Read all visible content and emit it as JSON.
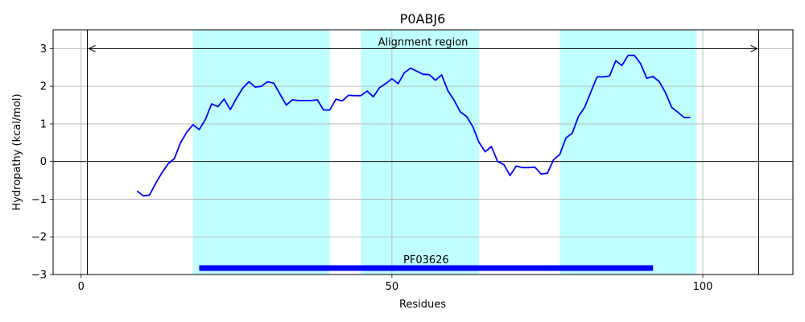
{
  "chart_data": {
    "type": "line",
    "title": "P0ABJ6",
    "xlabel": "Residues",
    "ylabel": "Hydropathy (kcal/mol)",
    "xlim": [
      -4.5,
      114.5
    ],
    "ylim": [
      -3,
      3.5
    ],
    "xticks": [
      0,
      50,
      100
    ],
    "yticks": [
      -3,
      -2,
      -1,
      0,
      1,
      2,
      3
    ],
    "grid": true,
    "line_color": "#0000ff",
    "band_color": "#c0ffff",
    "domain_color": "#0000ff",
    "bands": [
      [
        18,
        40
      ],
      [
        45,
        64
      ],
      [
        77,
        99
      ]
    ],
    "alignment": {
      "label": "Alignment region",
      "start": 1,
      "end": 109,
      "y": 3
    },
    "domain": {
      "label": "PF03626",
      "start": 19,
      "end": 92,
      "y": -2.83
    },
    "series": [
      {
        "x": [
          9,
          10,
          11,
          12,
          13,
          14,
          15,
          16,
          17,
          18,
          19,
          20,
          21,
          22,
          23,
          24,
          25,
          26,
          27,
          28,
          29,
          30,
          31,
          32,
          33,
          34,
          35,
          36,
          37,
          38,
          39,
          40,
          41,
          42,
          43,
          44,
          45,
          46,
          47,
          48,
          49,
          50,
          51,
          52,
          53,
          54,
          55,
          56,
          57,
          58,
          59,
          60,
          61,
          62,
          63,
          64,
          65,
          66,
          67,
          68,
          69,
          70,
          71,
          72,
          73,
          74,
          75,
          76,
          77,
          78,
          79,
          80,
          81,
          82,
          83,
          84,
          85,
          86,
          87,
          88,
          89,
          90,
          91,
          92,
          93,
          94,
          95,
          96,
          97,
          98
        ],
        "y": [
          -0.78,
          -0.91,
          -0.89,
          -0.58,
          -0.3,
          -0.06,
          0.08,
          0.5,
          0.78,
          0.98,
          0.85,
          1.12,
          1.53,
          1.46,
          1.66,
          1.38,
          1.68,
          1.95,
          2.12,
          1.98,
          2.0,
          2.12,
          2.08,
          1.79,
          1.5,
          1.64,
          1.62,
          1.62,
          1.62,
          1.64,
          1.37,
          1.37,
          1.66,
          1.61,
          1.76,
          1.75,
          1.75,
          1.87,
          1.72,
          1.96,
          2.07,
          2.2,
          2.07,
          2.36,
          2.48,
          2.4,
          2.32,
          2.31,
          2.16,
          2.3,
          1.88,
          1.63,
          1.32,
          1.2,
          0.93,
          0.51,
          0.26,
          0.4,
          0.0,
          -0.08,
          -0.37,
          -0.12,
          -0.16,
          -0.16,
          -0.15,
          -0.33,
          -0.31,
          0.05,
          0.19,
          0.63,
          0.75,
          1.2,
          1.44,
          1.85,
          2.25,
          2.25,
          2.27,
          2.68,
          2.55,
          2.82,
          2.82,
          2.6,
          2.21,
          2.26,
          2.12,
          1.83,
          1.44,
          1.31,
          1.17,
          1.17
        ]
      }
    ]
  }
}
